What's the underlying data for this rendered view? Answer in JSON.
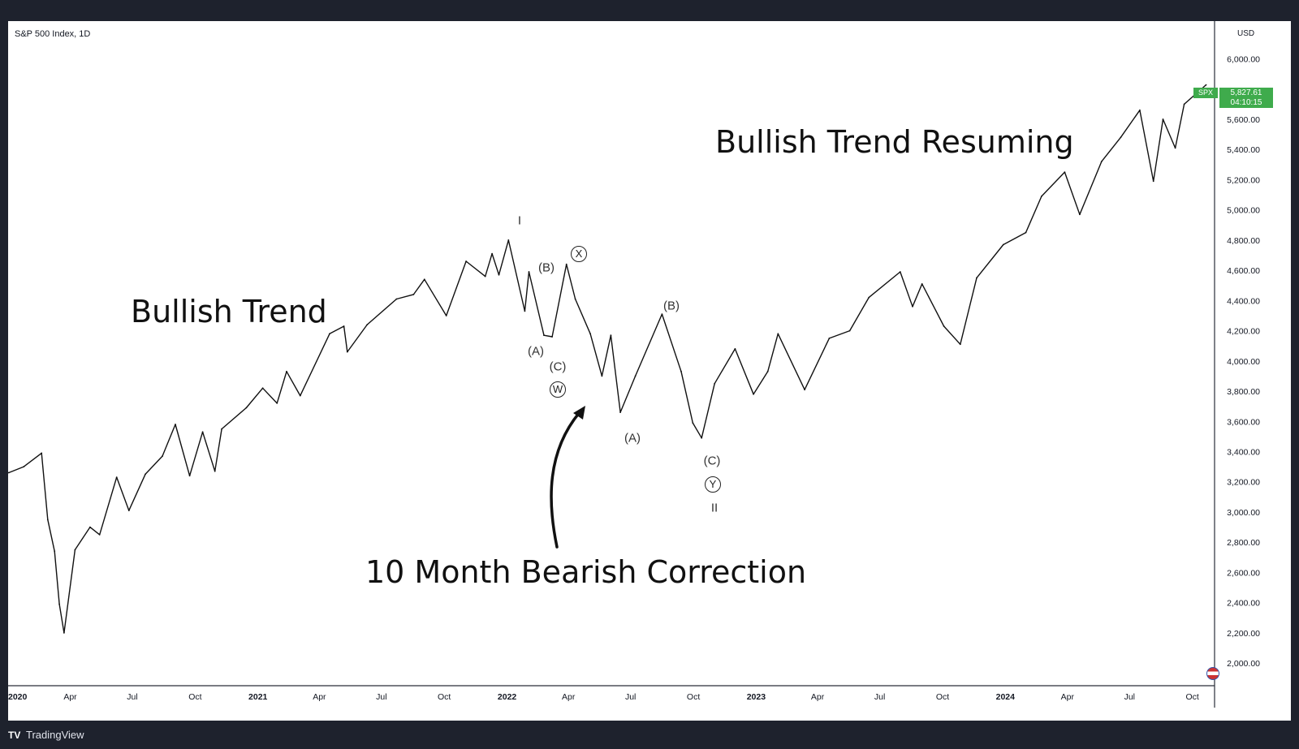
{
  "header": {
    "title": "S&P 500 Index, 1D",
    "currency": "USD"
  },
  "price_tag": {
    "symbol": "SPX",
    "price": "5,827.61",
    "countdown": "04:10:15",
    "color": "#3fab4c"
  },
  "footer": {
    "brand": "TradingView",
    "logo": "tradingview-logo"
  },
  "annotations": {
    "bullish_trend": "Bullish Trend",
    "bullish_resuming": "Bullish Trend Resuming",
    "bearish_correction": "10 Month Bearish Correction"
  },
  "waves": [
    {
      "label": "I",
      "circled": false
    },
    {
      "label": "(B)",
      "circled": false
    },
    {
      "label": "X",
      "circled": true
    },
    {
      "label": "(A)",
      "circled": false
    },
    {
      "label": "(C)",
      "circled": false
    },
    {
      "label": "W",
      "circled": true
    },
    {
      "label": "(B)",
      "circled": false
    },
    {
      "label": "(A)",
      "circled": false
    },
    {
      "label": "(C)",
      "circled": false
    },
    {
      "label": "Y",
      "circled": true
    },
    {
      "label": "II",
      "circled": false
    }
  ],
  "chart_data": {
    "type": "line",
    "title": "S&P 500 Index, 1D",
    "ylabel": "USD",
    "ylim": [
      1850,
      6250
    ],
    "xlim": [
      "2020-01-01",
      "2024-10-24"
    ],
    "y_ticks": [
      "2,000.00",
      "2,200.00",
      "2,400.00",
      "2,600.00",
      "2,800.00",
      "3,000.00",
      "3,200.00",
      "3,400.00",
      "3,600.00",
      "3,800.00",
      "4,000.00",
      "4,200.00",
      "4,400.00",
      "4,600.00",
      "4,800.00",
      "5,000.00",
      "5,200.00",
      "5,400.00",
      "5,600.00",
      "6,000.00"
    ],
    "x_ticks": [
      {
        "label": "2020",
        "date": "2020-01-01",
        "bold": true
      },
      {
        "label": "Apr",
        "date": "2020-04-01",
        "bold": false
      },
      {
        "label": "Jul",
        "date": "2020-07-01",
        "bold": false
      },
      {
        "label": "Oct",
        "date": "2020-10-01",
        "bold": false
      },
      {
        "label": "2021",
        "date": "2021-01-01",
        "bold": true
      },
      {
        "label": "Apr",
        "date": "2021-04-01",
        "bold": false
      },
      {
        "label": "Jul",
        "date": "2021-07-01",
        "bold": false
      },
      {
        "label": "Oct",
        "date": "2021-10-01",
        "bold": false
      },
      {
        "label": "2022",
        "date": "2022-01-01",
        "bold": true
      },
      {
        "label": "Apr",
        "date": "2022-04-01",
        "bold": false
      },
      {
        "label": "Jul",
        "date": "2022-07-01",
        "bold": false
      },
      {
        "label": "Oct",
        "date": "2022-10-01",
        "bold": false
      },
      {
        "label": "2023",
        "date": "2023-01-01",
        "bold": true
      },
      {
        "label": "Apr",
        "date": "2023-04-01",
        "bold": false
      },
      {
        "label": "Jul",
        "date": "2023-07-01",
        "bold": false
      },
      {
        "label": "Oct",
        "date": "2023-10-01",
        "bold": false
      },
      {
        "label": "2024",
        "date": "2024-01-01",
        "bold": true
      },
      {
        "label": "Apr",
        "date": "2024-04-01",
        "bold": false
      },
      {
        "label": "Jul",
        "date": "2024-07-01",
        "bold": false
      },
      {
        "label": "Oct",
        "date": "2024-10-01",
        "bold": false
      }
    ],
    "series": [
      {
        "color": "#111111",
        "points": [
          [
            "2020-01-02",
            3260
          ],
          [
            "2020-01-24",
            3300
          ],
          [
            "2020-02-19",
            3390
          ],
          [
            "2020-02-28",
            2950
          ],
          [
            "2020-03-09",
            2740
          ],
          [
            "2020-03-16",
            2390
          ],
          [
            "2020-03-23",
            2200
          ],
          [
            "2020-04-08",
            2750
          ],
          [
            "2020-04-30",
            2900
          ],
          [
            "2020-05-14",
            2850
          ],
          [
            "2020-06-08",
            3230
          ],
          [
            "2020-06-26",
            3010
          ],
          [
            "2020-07-20",
            3250
          ],
          [
            "2020-08-14",
            3370
          ],
          [
            "2020-09-02",
            3580
          ],
          [
            "2020-09-23",
            3240
          ],
          [
            "2020-10-12",
            3530
          ],
          [
            "2020-10-30",
            3270
          ],
          [
            "2020-11-09",
            3550
          ],
          [
            "2020-12-15",
            3690
          ],
          [
            "2021-01-08",
            3820
          ],
          [
            "2021-01-29",
            3720
          ],
          [
            "2021-02-12",
            3930
          ],
          [
            "2021-03-04",
            3770
          ],
          [
            "2021-04-16",
            4180
          ],
          [
            "2021-05-07",
            4230
          ],
          [
            "2021-05-12",
            4060
          ],
          [
            "2021-06-10",
            4240
          ],
          [
            "2021-07-23",
            4410
          ],
          [
            "2021-08-17",
            4440
          ],
          [
            "2021-09-02",
            4540
          ],
          [
            "2021-10-04",
            4300
          ],
          [
            "2021-11-02",
            4660
          ],
          [
            "2021-11-30",
            4560
          ],
          [
            "2021-12-10",
            4710
          ],
          [
            "2021-12-20",
            4570
          ],
          [
            "2022-01-03",
            4800
          ],
          [
            "2022-01-27",
            4330
          ],
          [
            "2022-02-02",
            4590
          ],
          [
            "2022-02-24",
            4170
          ],
          [
            "2022-03-08",
            4160
          ],
          [
            "2022-03-29",
            4640
          ],
          [
            "2022-04-11",
            4410
          ],
          [
            "2022-05-03",
            4180
          ],
          [
            "2022-05-20",
            3900
          ],
          [
            "2022-06-02",
            4170
          ],
          [
            "2022-06-16",
            3660
          ],
          [
            "2022-07-08",
            3900
          ],
          [
            "2022-08-16",
            4310
          ],
          [
            "2022-09-13",
            3930
          ],
          [
            "2022-09-30",
            3590
          ],
          [
            "2022-10-13",
            3490
          ],
          [
            "2022-11-01",
            3850
          ],
          [
            "2022-12-01",
            4080
          ],
          [
            "2022-12-28",
            3780
          ],
          [
            "2023-01-18",
            3930
          ],
          [
            "2023-02-02",
            4180
          ],
          [
            "2023-03-13",
            3810
          ],
          [
            "2023-04-18",
            4150
          ],
          [
            "2023-05-18",
            4200
          ],
          [
            "2023-06-15",
            4420
          ],
          [
            "2023-07-31",
            4590
          ],
          [
            "2023-08-18",
            4360
          ],
          [
            "2023-09-01",
            4510
          ],
          [
            "2023-10-03",
            4230
          ],
          [
            "2023-10-27",
            4110
          ],
          [
            "2023-11-20",
            4550
          ],
          [
            "2023-12-29",
            4770
          ],
          [
            "2024-01-31",
            4850
          ],
          [
            "2024-02-23",
            5090
          ],
          [
            "2024-03-28",
            5250
          ],
          [
            "2024-04-19",
            4970
          ],
          [
            "2024-05-21",
            5320
          ],
          [
            "2024-06-18",
            5480
          ],
          [
            "2024-07-16",
            5660
          ],
          [
            "2024-08-05",
            5190
          ],
          [
            "2024-08-19",
            5600
          ],
          [
            "2024-09-06",
            5410
          ],
          [
            "2024-09-19",
            5700
          ],
          [
            "2024-10-21",
            5827.61
          ]
        ]
      }
    ]
  }
}
